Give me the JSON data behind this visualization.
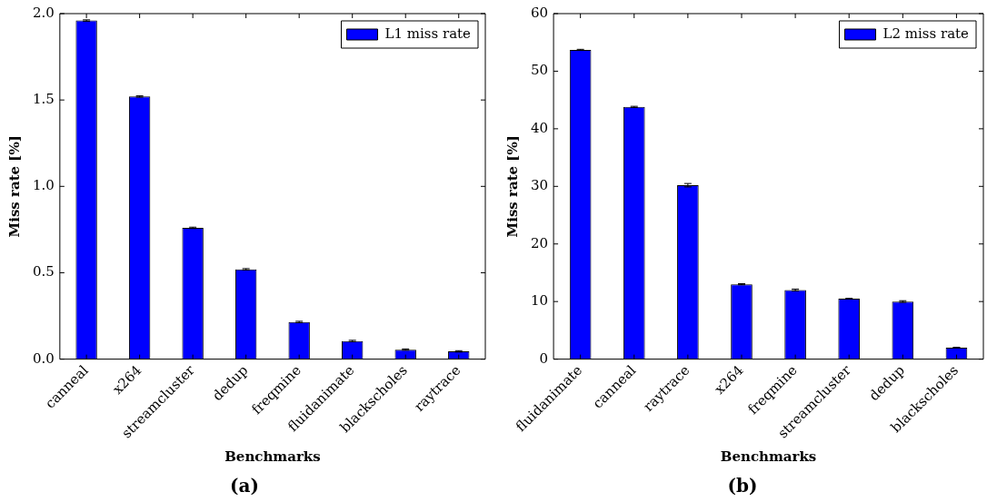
{
  "chart_data": [
    {
      "type": "bar",
      "title": "(a)",
      "xlabel": "Benchmarks",
      "ylabel": "Miss rate [%]",
      "categories": [
        "canneal",
        "x264",
        "streamcluster",
        "dedup",
        "freqmine",
        "fluidanimate",
        "blackscholes",
        "raytrace"
      ],
      "series": [
        {
          "name": "L1 miss rate",
          "color": "#0000ff",
          "values": [
            1.96,
            1.52,
            0.76,
            0.52,
            0.215,
            0.105,
            0.055,
            0.045
          ],
          "errors": [
            0.004,
            0.004,
            0.004,
            0.004,
            0.004,
            0.004,
            0.004,
            0.004
          ]
        }
      ],
      "ylim": [
        0,
        2.0
      ],
      "yticks": [
        {
          "value": 0,
          "label": "0.0"
        },
        {
          "value": 0.5,
          "label": "0.5"
        },
        {
          "value": 1.0,
          "label": "1.0"
        },
        {
          "value": 1.5,
          "label": "1.5"
        },
        {
          "value": 2.0,
          "label": "2.0"
        }
      ],
      "legend": "top right",
      "grid": false
    },
    {
      "type": "bar",
      "title": "(b)",
      "xlabel": "Benchmarks",
      "ylabel": "Miss rate [%]",
      "categories": [
        "fluidanimate",
        "canneal",
        "raytrace",
        "x264",
        "freqmine",
        "streamcluster",
        "dedup",
        "blackscholes"
      ],
      "series": [
        {
          "name": "L2 miss rate",
          "color": "#0000ff",
          "values": [
            53.7,
            43.8,
            30.2,
            13.0,
            12.0,
            10.5,
            10.0,
            2.0
          ],
          "errors": [
            0.1,
            0.1,
            0.3,
            0.1,
            0.15,
            0.05,
            0.15,
            0.05
          ]
        }
      ],
      "ylim": [
        0,
        60
      ],
      "yticks": [
        0,
        10,
        20,
        30,
        40,
        50,
        60
      ],
      "legend": "top right",
      "grid": false
    }
  ]
}
